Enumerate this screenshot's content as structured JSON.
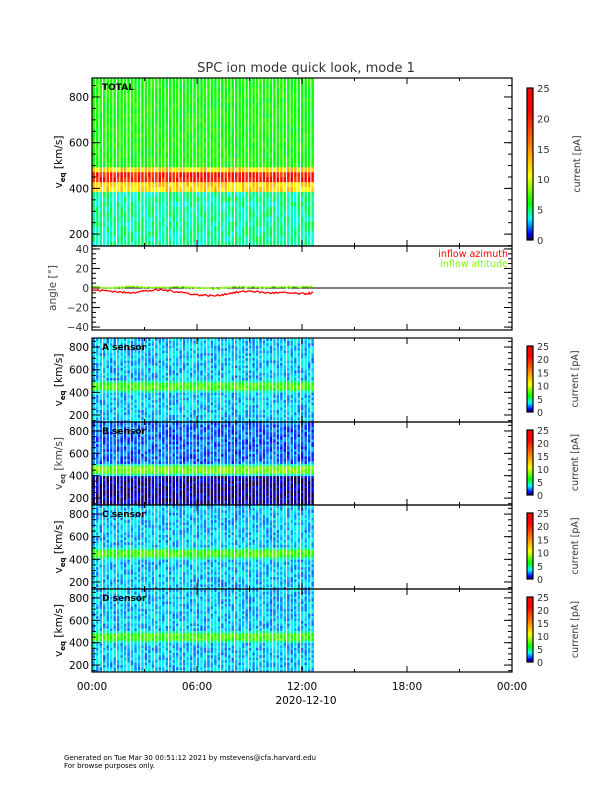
{
  "title": "SPC ion mode quick look, mode 1",
  "date_label": "2020-12-10",
  "footer": [
    "Generated on Tue Mar 30 00:51:12 2021 by mstevens@cfa.harvard.edu",
    "For browse purposes only."
  ],
  "colors": {
    "azimuth": "#ff0000",
    "altitude": "#80ff00"
  },
  "chart_data": [
    {
      "type": "heatmap",
      "panel": "TOTAL",
      "label": "TOTAL",
      "ylabel": "v_eq [km/s]",
      "ylim": [
        148,
        883
      ],
      "yticks": [
        "200",
        "400",
        "600",
        "800"
      ],
      "colorbar": {
        "label": "current [pA]",
        "range": [
          0,
          25
        ],
        "ticks": [
          "0",
          "5",
          "10",
          "15",
          "20",
          "25"
        ]
      },
      "peak_velocity": 445,
      "peak_current": 20,
      "background_current": 6
    },
    {
      "type": "line",
      "panel": "angle",
      "ylabel": "angle [°]",
      "ylim": [
        -43,
        43
      ],
      "yticks": [
        "-40",
        "-20",
        "0",
        "20",
        "40"
      ],
      "x_hours": [
        0,
        1,
        2,
        3,
        4,
        5,
        6,
        7,
        8,
        9,
        10,
        11,
        12,
        12.7
      ],
      "series": [
        {
          "name": "inflow azimuth",
          "values": [
            -2,
            -3,
            -5,
            -3,
            -2,
            -4,
            -7,
            -8,
            -5,
            -3,
            -5,
            -5,
            -6,
            -5
          ]
        },
        {
          "name": "inflow altitude",
          "values": [
            1,
            0,
            1,
            1,
            0,
            1,
            0,
            -1,
            1,
            1,
            1,
            1,
            1,
            2
          ]
        }
      ]
    },
    {
      "type": "heatmap",
      "panel": "A",
      "label": "A sensor",
      "ylabel": "v_eq [km/s]",
      "ylim": [
        138,
        880
      ],
      "yticks": [
        "200",
        "400",
        "600",
        "800"
      ],
      "colorbar": {
        "label": "current [pA]",
        "range": [
          0,
          25
        ],
        "ticks": [
          "0",
          "5",
          "10",
          "15",
          "20",
          "25"
        ]
      },
      "peak_velocity": 450,
      "peak_current": 6,
      "background_current": 2
    },
    {
      "type": "heatmap",
      "panel": "B",
      "label": "B sensor",
      "ylabel": "v_eq [km/s]",
      "ylim": [
        138,
        880
      ],
      "yticks": [
        "200",
        "400",
        "600",
        "800"
      ],
      "colorbar": {
        "label": "current [pA]",
        "range": [
          0,
          25
        ],
        "ticks": [
          "0",
          "5",
          "10",
          "15",
          "20",
          "25"
        ]
      },
      "peak_velocity": 450,
      "peak_current": 7,
      "background_current": 1
    },
    {
      "type": "heatmap",
      "panel": "C",
      "label": "C sensor",
      "ylabel": "v_eq [km/s]",
      "ylim": [
        138,
        880
      ],
      "yticks": [
        "200",
        "400",
        "600",
        "800"
      ],
      "colorbar": {
        "label": "current [pA]",
        "range": [
          0,
          25
        ],
        "ticks": [
          "0",
          "5",
          "10",
          "15",
          "20",
          "25"
        ]
      },
      "peak_velocity": 450,
      "peak_current": 6,
      "background_current": 2
    },
    {
      "type": "heatmap",
      "panel": "D",
      "label": "D sensor",
      "ylabel": "v_eq [km/s]",
      "ylim": [
        138,
        880
      ],
      "yticks": [
        "200",
        "400",
        "600",
        "800"
      ],
      "colorbar": {
        "label": "current [pA]",
        "range": [
          0,
          25
        ],
        "ticks": [
          "0",
          "5",
          "10",
          "15",
          "20",
          "25"
        ]
      },
      "peak_velocity": 450,
      "peak_current": 6,
      "background_current": 2
    }
  ],
  "xaxis": {
    "ticks": [
      "00:00",
      "06:00",
      "12:00",
      "18:00",
      "00:00"
    ],
    "range_hours": [
      0,
      24
    ],
    "data_end_hours": 12.7
  }
}
